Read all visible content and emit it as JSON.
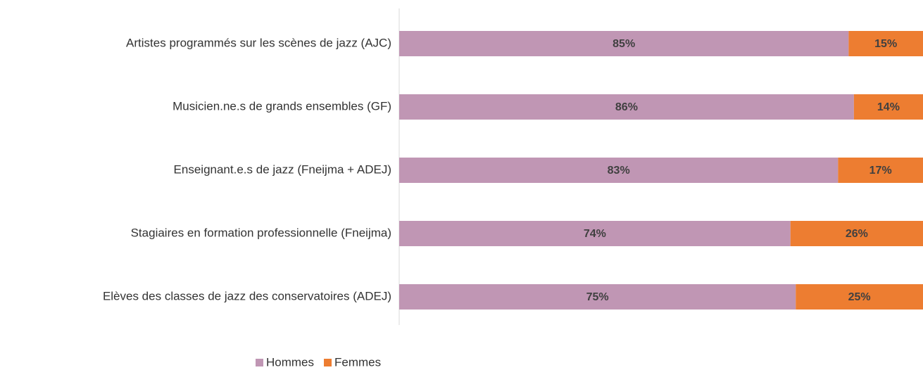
{
  "chart_data": {
    "type": "stacked-barh",
    "categories": [
      "Artistes programmés sur les scènes de jazz (AJC)",
      "Musicien.ne.s de grands ensembles (GF)",
      "Enseignant.e.s de jazz (Fneijma + ADEJ)",
      "Stagiaires en formation professionnelle (Fneijma)",
      "Elèves des classes de jazz des conservatoires (ADEJ)"
    ],
    "series": [
      {
        "name": "Hommes",
        "color": "#c096b4",
        "values": [
          85,
          86,
          83,
          74,
          75
        ],
        "value_labels": [
          "85%",
          "86%",
          "83%",
          "74%",
          "75%"
        ]
      },
      {
        "name": "Femmes",
        "color": "#ed7d31",
        "values": [
          15,
          14,
          17,
          26,
          25
        ],
        "value_labels": [
          "15%",
          "14%",
          "17%",
          "26%",
          "25%"
        ]
      }
    ],
    "xlim": [
      0,
      100
    ],
    "legend": "bottom"
  }
}
